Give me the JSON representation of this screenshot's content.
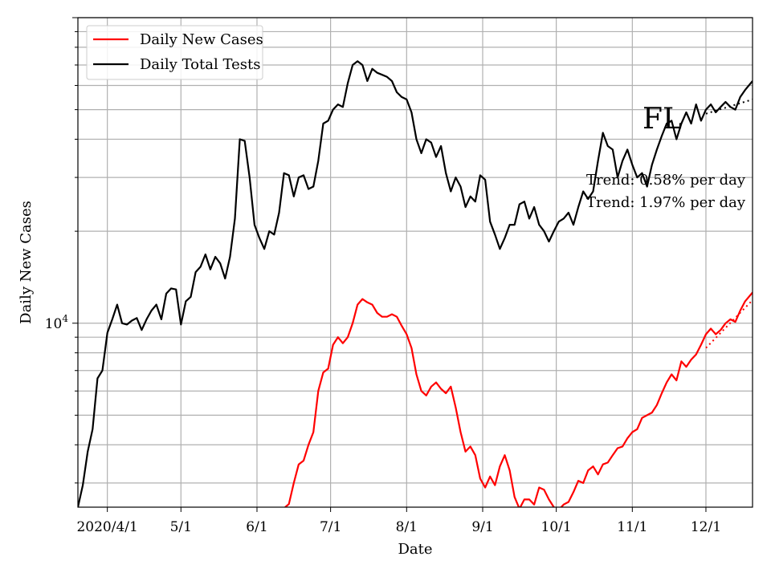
{
  "chart_data": {
    "type": "line",
    "xlabel": "Date",
    "ylabel": "Daily New Cases",
    "x_range": [
      "2020-03-20",
      "2020-12-20"
    ],
    "y_scale": "log",
    "y_range": [
      2500,
      100000
    ],
    "y_tick_label": "10^4",
    "grid": true,
    "legend_position": "top-left",
    "annotation": "FL",
    "trend_labels": [
      "Trend: 0.58% per day",
      "Trend: 1.97% per day"
    ],
    "x_tick_labels": [
      {
        "date": "2020-04-01",
        "label": "2020/4/1"
      },
      {
        "date": "2020-05-01",
        "label": "5/1"
      },
      {
        "date": "2020-06-01",
        "label": "6/1"
      },
      {
        "date": "2020-07-01",
        "label": "7/1"
      },
      {
        "date": "2020-08-01",
        "label": "8/1"
      },
      {
        "date": "2020-09-01",
        "label": "9/1"
      },
      {
        "date": "2020-10-01",
        "label": "10/1"
      },
      {
        "date": "2020-11-01",
        "label": "11/1"
      },
      {
        "date": "2020-12-01",
        "label": "12/1"
      }
    ],
    "series": [
      {
        "name": "Daily New Cases",
        "color": "#ff0000",
        "points": [
          [
            "2020-06-12",
            2480
          ],
          [
            "2020-06-14",
            2560
          ],
          [
            "2020-06-16",
            3000
          ],
          [
            "2020-06-18",
            3450
          ],
          [
            "2020-06-20",
            3550
          ],
          [
            "2020-06-22",
            4000
          ],
          [
            "2020-06-24",
            4400
          ],
          [
            "2020-06-26",
            6000
          ],
          [
            "2020-06-28",
            6900
          ],
          [
            "2020-06-30",
            7100
          ],
          [
            "2020-07-02",
            8500
          ],
          [
            "2020-07-04",
            9000
          ],
          [
            "2020-07-06",
            8600
          ],
          [
            "2020-07-08",
            9000
          ],
          [
            "2020-07-10",
            10000
          ],
          [
            "2020-07-12",
            11500
          ],
          [
            "2020-07-14",
            12000
          ],
          [
            "2020-07-16",
            11700
          ],
          [
            "2020-07-18",
            11500
          ],
          [
            "2020-07-20",
            10800
          ],
          [
            "2020-07-22",
            10500
          ],
          [
            "2020-07-24",
            10500
          ],
          [
            "2020-07-26",
            10700
          ],
          [
            "2020-07-28",
            10500
          ],
          [
            "2020-07-30",
            9800
          ],
          [
            "2020-08-01",
            9200
          ],
          [
            "2020-08-03",
            8300
          ],
          [
            "2020-08-05",
            6800
          ],
          [
            "2020-08-07",
            6000
          ],
          [
            "2020-08-09",
            5800
          ],
          [
            "2020-08-11",
            6200
          ],
          [
            "2020-08-13",
            6400
          ],
          [
            "2020-08-15",
            6100
          ],
          [
            "2020-08-17",
            5900
          ],
          [
            "2020-08-19",
            6200
          ],
          [
            "2020-08-21",
            5300
          ],
          [
            "2020-08-23",
            4400
          ],
          [
            "2020-08-25",
            3800
          ],
          [
            "2020-08-27",
            3950
          ],
          [
            "2020-08-29",
            3700
          ],
          [
            "2020-08-31",
            3100
          ],
          [
            "2020-09-02",
            2900
          ],
          [
            "2020-09-04",
            3150
          ],
          [
            "2020-09-06",
            2950
          ],
          [
            "2020-09-08",
            3400
          ],
          [
            "2020-09-10",
            3700
          ],
          [
            "2020-09-12",
            3300
          ],
          [
            "2020-09-14",
            2700
          ],
          [
            "2020-09-16",
            2470
          ],
          [
            "2020-09-18",
            2650
          ],
          [
            "2020-09-20",
            2650
          ],
          [
            "2020-09-22",
            2550
          ],
          [
            "2020-09-24",
            2900
          ],
          [
            "2020-09-26",
            2850
          ],
          [
            "2020-09-28",
            2650
          ],
          [
            "2020-09-30",
            2500
          ],
          [
            "2020-10-02",
            2450
          ],
          [
            "2020-10-04",
            2550
          ],
          [
            "2020-10-06",
            2600
          ],
          [
            "2020-10-08",
            2800
          ],
          [
            "2020-10-10",
            3050
          ],
          [
            "2020-10-12",
            3000
          ],
          [
            "2020-10-14",
            3300
          ],
          [
            "2020-10-16",
            3400
          ],
          [
            "2020-10-18",
            3200
          ],
          [
            "2020-10-20",
            3450
          ],
          [
            "2020-10-22",
            3500
          ],
          [
            "2020-10-24",
            3700
          ],
          [
            "2020-10-26",
            3900
          ],
          [
            "2020-10-28",
            3950
          ],
          [
            "2020-10-30",
            4200
          ],
          [
            "2020-11-01",
            4400
          ],
          [
            "2020-11-03",
            4500
          ],
          [
            "2020-11-05",
            4900
          ],
          [
            "2020-11-07",
            5000
          ],
          [
            "2020-11-09",
            5100
          ],
          [
            "2020-11-11",
            5400
          ],
          [
            "2020-11-13",
            5900
          ],
          [
            "2020-11-15",
            6400
          ],
          [
            "2020-11-17",
            6800
          ],
          [
            "2020-11-19",
            6500
          ],
          [
            "2020-11-21",
            7500
          ],
          [
            "2020-11-23",
            7200
          ],
          [
            "2020-11-25",
            7600
          ],
          [
            "2020-11-27",
            7900
          ],
          [
            "2020-11-29",
            8500
          ],
          [
            "2020-12-01",
            9200
          ],
          [
            "2020-12-03",
            9600
          ],
          [
            "2020-12-05",
            9200
          ],
          [
            "2020-12-07",
            9500
          ],
          [
            "2020-12-09",
            10000
          ],
          [
            "2020-12-11",
            10300
          ],
          [
            "2020-12-13",
            10100
          ],
          [
            "2020-12-15",
            11000
          ],
          [
            "2020-12-17",
            11800
          ],
          [
            "2020-12-20",
            12600
          ]
        ]
      },
      {
        "name": "Daily Total Tests",
        "color": "#000000",
        "points": [
          [
            "2020-03-20",
            2500
          ],
          [
            "2020-03-22",
            2950
          ],
          [
            "2020-03-24",
            3800
          ],
          [
            "2020-03-26",
            4500
          ],
          [
            "2020-03-28",
            6600
          ],
          [
            "2020-03-30",
            7000
          ],
          [
            "2020-04-01",
            9300
          ],
          [
            "2020-04-03",
            10300
          ],
          [
            "2020-04-05",
            11500
          ],
          [
            "2020-04-07",
            10000
          ],
          [
            "2020-04-09",
            9900
          ],
          [
            "2020-04-11",
            10200
          ],
          [
            "2020-04-13",
            10400
          ],
          [
            "2020-04-15",
            9500
          ],
          [
            "2020-04-17",
            10300
          ],
          [
            "2020-04-19",
            11000
          ],
          [
            "2020-04-21",
            11500
          ],
          [
            "2020-04-23",
            10300
          ],
          [
            "2020-04-25",
            12500
          ],
          [
            "2020-04-27",
            13000
          ],
          [
            "2020-04-29",
            12900
          ],
          [
            "2020-05-01",
            9900
          ],
          [
            "2020-05-03",
            11800
          ],
          [
            "2020-05-05",
            12200
          ],
          [
            "2020-05-07",
            14700
          ],
          [
            "2020-05-09",
            15300
          ],
          [
            "2020-05-11",
            16800
          ],
          [
            "2020-05-13",
            15000
          ],
          [
            "2020-05-15",
            16500
          ],
          [
            "2020-05-17",
            15700
          ],
          [
            "2020-05-19",
            14000
          ],
          [
            "2020-05-21",
            16500
          ],
          [
            "2020-05-23",
            22000
          ],
          [
            "2020-05-25",
            40000
          ],
          [
            "2020-05-27",
            39500
          ],
          [
            "2020-05-29",
            30000
          ],
          [
            "2020-05-31",
            21000
          ],
          [
            "2020-06-02",
            19000
          ],
          [
            "2020-06-04",
            17500
          ],
          [
            "2020-06-06",
            20000
          ],
          [
            "2020-06-08",
            19500
          ],
          [
            "2020-06-10",
            23000
          ],
          [
            "2020-06-12",
            31000
          ],
          [
            "2020-06-14",
            30500
          ],
          [
            "2020-06-16",
            26000
          ],
          [
            "2020-06-18",
            30000
          ],
          [
            "2020-06-20",
            30500
          ],
          [
            "2020-06-22",
            27500
          ],
          [
            "2020-06-24",
            28000
          ],
          [
            "2020-06-26",
            34000
          ],
          [
            "2020-06-28",
            45000
          ],
          [
            "2020-06-30",
            46000
          ],
          [
            "2020-07-02",
            50000
          ],
          [
            "2020-07-04",
            52000
          ],
          [
            "2020-07-06",
            51000
          ],
          [
            "2020-07-08",
            61000
          ],
          [
            "2020-07-10",
            70000
          ],
          [
            "2020-07-12",
            72000
          ],
          [
            "2020-07-14",
            70000
          ],
          [
            "2020-07-16",
            62000
          ],
          [
            "2020-07-18",
            68000
          ],
          [
            "2020-07-20",
            66000
          ],
          [
            "2020-07-22",
            65000
          ],
          [
            "2020-07-24",
            64000
          ],
          [
            "2020-07-26",
            62000
          ],
          [
            "2020-07-28",
            57000
          ],
          [
            "2020-07-30",
            55000
          ],
          [
            "2020-08-01",
            54000
          ],
          [
            "2020-08-03",
            49000
          ],
          [
            "2020-08-05",
            40000
          ],
          [
            "2020-08-07",
            36000
          ],
          [
            "2020-08-09",
            40000
          ],
          [
            "2020-08-11",
            39000
          ],
          [
            "2020-08-13",
            35000
          ],
          [
            "2020-08-15",
            38000
          ],
          [
            "2020-08-17",
            31000
          ],
          [
            "2020-08-19",
            27000
          ],
          [
            "2020-08-21",
            30000
          ],
          [
            "2020-08-23",
            28000
          ],
          [
            "2020-08-25",
            24000
          ],
          [
            "2020-08-27",
            26000
          ],
          [
            "2020-08-29",
            25000
          ],
          [
            "2020-08-31",
            30500
          ],
          [
            "2020-09-02",
            29500
          ],
          [
            "2020-09-04",
            21500
          ],
          [
            "2020-09-06",
            19500
          ],
          [
            "2020-09-08",
            17500
          ],
          [
            "2020-09-10",
            19000
          ],
          [
            "2020-09-12",
            21000
          ],
          [
            "2020-09-14",
            21000
          ],
          [
            "2020-09-16",
            24500
          ],
          [
            "2020-09-18",
            25000
          ],
          [
            "2020-09-20",
            22000
          ],
          [
            "2020-09-22",
            24000
          ],
          [
            "2020-09-24",
            21000
          ],
          [
            "2020-09-26",
            20000
          ],
          [
            "2020-09-28",
            18500
          ],
          [
            "2020-09-30",
            20000
          ],
          [
            "2020-10-02",
            21500
          ],
          [
            "2020-10-04",
            22000
          ],
          [
            "2020-10-06",
            23000
          ],
          [
            "2020-10-08",
            21000
          ],
          [
            "2020-10-10",
            24000
          ],
          [
            "2020-10-12",
            27000
          ],
          [
            "2020-10-14",
            25500
          ],
          [
            "2020-10-16",
            27000
          ],
          [
            "2020-10-18",
            34000
          ],
          [
            "2020-10-20",
            42000
          ],
          [
            "2020-10-22",
            38000
          ],
          [
            "2020-10-24",
            37000
          ],
          [
            "2020-10-26",
            30000
          ],
          [
            "2020-10-28",
            34000
          ],
          [
            "2020-10-30",
            37000
          ],
          [
            "2020-11-01",
            33000
          ],
          [
            "2020-11-03",
            30000
          ],
          [
            "2020-11-05",
            31000
          ],
          [
            "2020-11-07",
            28000
          ],
          [
            "2020-11-09",
            33000
          ],
          [
            "2020-11-11",
            37000
          ],
          [
            "2020-11-13",
            41000
          ],
          [
            "2020-11-15",
            45000
          ],
          [
            "2020-11-17",
            46000
          ],
          [
            "2020-11-19",
            40000
          ],
          [
            "2020-11-21",
            45000
          ],
          [
            "2020-11-23",
            49000
          ],
          [
            "2020-11-25",
            45000
          ],
          [
            "2020-11-27",
            52000
          ],
          [
            "2020-11-29",
            46000
          ],
          [
            "2020-12-01",
            50000
          ],
          [
            "2020-12-03",
            52000
          ],
          [
            "2020-12-05",
            49000
          ],
          [
            "2020-12-07",
            51000
          ],
          [
            "2020-12-09",
            53000
          ],
          [
            "2020-12-11",
            51000
          ],
          [
            "2020-12-13",
            50000
          ],
          [
            "2020-12-15",
            55000
          ],
          [
            "2020-12-17",
            58000
          ],
          [
            "2020-12-20",
            62000
          ]
        ]
      }
    ],
    "trend_lines": [
      {
        "color": "#000000",
        "style": "dotted",
        "points": [
          [
            "2020-12-01",
            48500
          ],
          [
            "2020-12-20",
            54000
          ]
        ]
      },
      {
        "color": "#ff0000",
        "style": "dotted",
        "points": [
          [
            "2020-12-01",
            8300
          ],
          [
            "2020-12-20",
            11900
          ]
        ]
      }
    ]
  }
}
